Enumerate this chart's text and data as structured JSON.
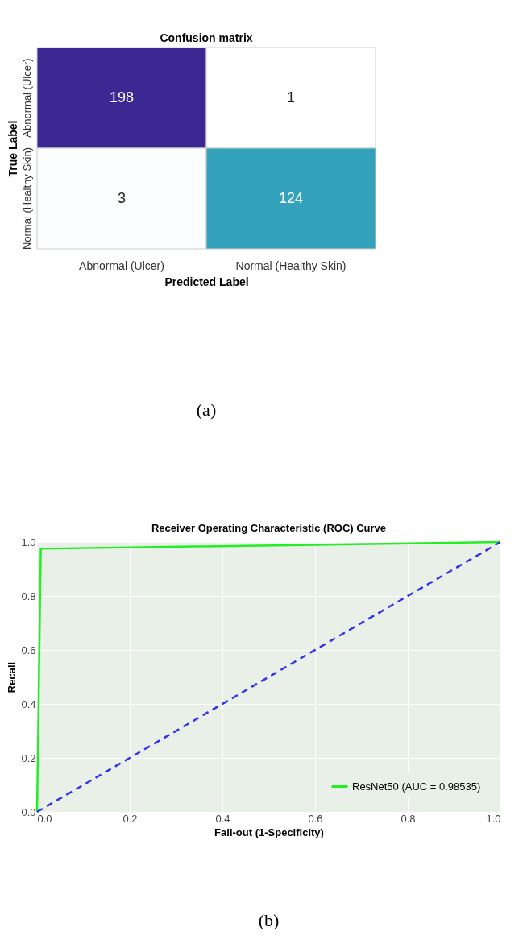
{
  "chart_data": [
    {
      "type": "heatmap",
      "title": "Confusion matrix",
      "xlabel": "Predicted Label",
      "ylabel": "True Label",
      "categories": [
        "Abnormal (Ulcer)",
        "Normal (Healthy Skin)"
      ],
      "y_categories": [
        "Abnormal (Ulcer)",
        "Normal (Healthy Skin)"
      ],
      "cells": [
        [
          198,
          1
        ],
        [
          3,
          124
        ]
      ],
      "data_labels": true,
      "annotations": [
        "(a)"
      ]
    },
    {
      "type": "line",
      "title": "Receiver Operating Characteristic (ROC) Curve",
      "xlabel": "Fall-out (1-Specificity)",
      "ylabel": "Recall",
      "xlim": [
        0,
        1
      ],
      "ylim": [
        0,
        1
      ],
      "xticks": [
        {
          "value": 0,
          "label": "0.0"
        },
        0.2,
        0.4,
        0.6,
        0.8,
        {
          "value": 1,
          "label": "1.0"
        }
      ],
      "yticks": [
        {
          "value": 0,
          "label": "0.0"
        },
        0.2,
        0.4,
        0.6,
        0.8,
        {
          "value": 1,
          "label": "1.0"
        }
      ],
      "grid": true,
      "legend": "bottom right",
      "series": [
        {
          "name": "ResNet50 (AUC = 0.98535)",
          "color": "#22ee22",
          "x": [
            0,
            0.008,
            1
          ],
          "values": [
            0,
            0.975,
            1
          ],
          "line_style": "solid"
        },
        {
          "color": "#3333ee",
          "x": [
            0,
            1
          ],
          "values": [
            0,
            1
          ],
          "line_style": "dashed"
        }
      ],
      "annotations": [
        "(b)"
      ]
    }
  ]
}
